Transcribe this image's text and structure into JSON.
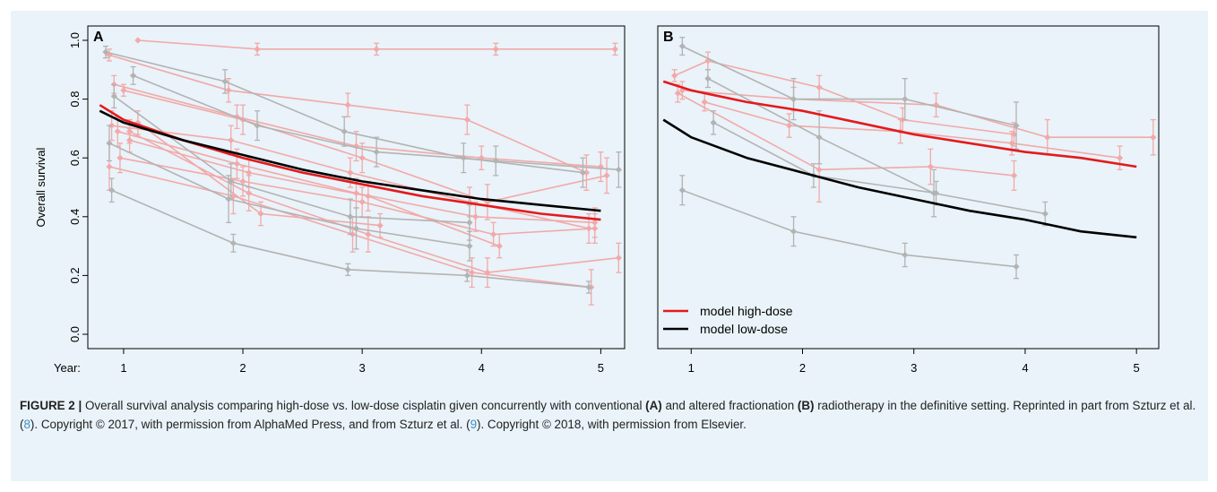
{
  "caption": {
    "figure_label": "FIGURE 2 |",
    "t1": " Overall survival analysis comparing high-dose vs. low-dose cisplatin given concurrently with conventional ",
    "b1": "(A)",
    "t2": " and altered fractionation ",
    "b2": "(B)",
    "t3": " radiotherapy in the definitive setting. Reprinted in part from Szturz et al. (",
    "ref1": "8",
    "t4": "). Copyright © 2017, with permission from AlphaMed Press, and from Szturz et al. (",
    "ref2": "9",
    "t5": "). Copyright © 2018, with permission from Elsevier."
  },
  "colors": {
    "high_dose_study": "#f2a9a9",
    "low_dose_study": "#b3b3b3",
    "model_high": "#e31a1c",
    "model_low": "#000000",
    "frame_bg": "#e9f3f9"
  },
  "chart_data": [
    {
      "panel": "A",
      "type": "line",
      "ylabel": "Overall survival",
      "x_axis_prefix": "Year:",
      "xticks": [
        1,
        2,
        3,
        4,
        5
      ],
      "yticks": [
        "0.0",
        "0.2",
        "0.4",
        "0.6",
        "0.8",
        "1.0"
      ],
      "xlim": [
        0.7,
        5.2
      ],
      "ylim": [
        0.0,
        1.0
      ],
      "models": [
        {
          "name": "model high-dose",
          "color": "#e31a1c",
          "x": [
            0.8,
            1.0,
            1.5,
            2.0,
            2.5,
            3.0,
            3.5,
            4.0,
            4.5,
            5.0
          ],
          "y": [
            0.78,
            0.73,
            0.66,
            0.6,
            0.55,
            0.51,
            0.47,
            0.44,
            0.41,
            0.39
          ]
        },
        {
          "name": "model low-dose",
          "color": "#000000",
          "x": [
            0.8,
            1.0,
            1.5,
            2.0,
            2.5,
            3.0,
            3.5,
            4.0,
            4.5,
            5.0
          ],
          "y": [
            0.76,
            0.72,
            0.66,
            0.61,
            0.56,
            0.52,
            0.49,
            0.46,
            0.44,
            0.42
          ]
        }
      ],
      "studies": [
        {
          "arm": "high",
          "x": [
            1.12,
            2.12,
            3.12,
            4.12,
            5.12
          ],
          "y": [
            1.0,
            0.97,
            0.97,
            0.97,
            0.97
          ],
          "err": [
            0,
            0.02,
            0.02,
            0.02,
            0.02
          ]
        },
        {
          "arm": "high",
          "x": [
            0.88,
            1.88,
            2.88,
            3.88,
            4.88
          ],
          "y": [
            0.95,
            0.83,
            0.78,
            0.73,
            0.55
          ],
          "err": [
            0.02,
            0.04,
            0.04,
            0.05,
            0.06
          ]
        },
        {
          "arm": "high",
          "x": [
            0.92,
            1.95,
            2.95,
            4.0,
            5.0
          ],
          "y": [
            0.85,
            0.74,
            0.64,
            0.6,
            0.57
          ],
          "err": [
            0.03,
            0.04,
            0.05,
            0.04,
            0.05
          ]
        },
        {
          "arm": "high",
          "x": [
            1.0,
            2.0,
            3.0,
            4.05,
            5.05
          ],
          "y": [
            0.83,
            0.73,
            0.6,
            0.45,
            0.54
          ],
          "err": [
            0.02,
            0.05,
            0.05,
            0.06,
            0.06
          ]
        },
        {
          "arm": "high",
          "x": [
            0.9,
            1.9,
            2.9,
            3.9,
            4.9
          ],
          "y": [
            0.71,
            0.66,
            0.55,
            0.45,
            0.36
          ],
          "err": [
            0.05,
            0.05,
            0.05,
            0.05,
            0.05
          ]
        },
        {
          "arm": "high",
          "x": [
            0.95,
            1.95,
            2.95,
            3.95,
            4.95
          ],
          "y": [
            0.69,
            0.58,
            0.48,
            0.4,
            0.38
          ],
          "err": [
            0.05,
            0.05,
            0.05,
            0.05,
            0.05
          ]
        },
        {
          "arm": "high",
          "x": [
            0.97,
            2.0,
            3.0,
            4.1,
            4.95
          ],
          "y": [
            0.6,
            0.52,
            0.45,
            0.34,
            0.36
          ],
          "err": [
            0.05,
            0.05,
            0.05,
            0.04,
            0.05
          ]
        },
        {
          "arm": "high",
          "x": [
            1.05,
            2.05,
            3.05,
            4.15
          ],
          "y": [
            0.66,
            0.55,
            0.47,
            0.3
          ],
          "err": [
            0.04,
            0.05,
            0.05,
            0.04
          ]
        },
        {
          "arm": "high",
          "x": [
            1.12,
            2.15,
            3.15
          ],
          "y": [
            0.72,
            0.41,
            0.37
          ],
          "err": [
            0.04,
            0.04,
            0.04
          ]
        },
        {
          "arm": "high",
          "x": [
            0.88,
            1.92,
            2.92,
            3.92,
            4.92
          ],
          "y": [
            0.57,
            0.47,
            0.34,
            0.21,
            0.16
          ],
          "err": [
            0.08,
            0.06,
            0.06,
            0.05,
            0.06
          ]
        },
        {
          "arm": "high",
          "x": [
            1.05,
            2.05,
            3.05,
            4.05,
            5.15
          ],
          "y": [
            0.69,
            0.48,
            0.34,
            0.21,
            0.26
          ],
          "err": [
            0.04,
            0.06,
            0.06,
            0.05,
            0.05
          ]
        },
        {
          "arm": "low",
          "x": [
            0.85,
            1.85,
            2.85,
            3.85,
            4.85
          ],
          "y": [
            0.96,
            0.86,
            0.69,
            0.6,
            0.55
          ],
          "err": [
            0.02,
            0.04,
            0.05,
            0.05,
            0.05
          ]
        },
        {
          "arm": "low",
          "x": [
            1.08,
            2.12,
            3.12,
            4.12,
            5.15
          ],
          "y": [
            0.88,
            0.71,
            0.62,
            0.59,
            0.56
          ],
          "err": [
            0.03,
            0.05,
            0.05,
            0.05,
            0.06
          ]
        },
        {
          "arm": "low",
          "x": [
            0.92,
            1.9,
            2.9,
            3.9
          ],
          "y": [
            0.81,
            0.52,
            0.4,
            0.38
          ],
          "err": [
            0.04,
            0.06,
            0.06,
            0.06
          ]
        },
        {
          "arm": "low",
          "x": [
            0.88,
            1.88,
            2.95,
            3.9
          ],
          "y": [
            0.65,
            0.46,
            0.36,
            0.3
          ],
          "err": [
            0.06,
            0.08,
            0.07,
            0.05
          ]
        },
        {
          "arm": "low",
          "x": [
            0.9,
            1.92,
            2.88,
            3.88,
            4.9
          ],
          "y": [
            0.49,
            0.31,
            0.22,
            0.2,
            0.16
          ],
          "err": [
            0.04,
            0.03,
            0.02,
            0.02,
            0.02
          ]
        }
      ]
    },
    {
      "panel": "B",
      "type": "line",
      "xticks": [
        1,
        2,
        3,
        4,
        5
      ],
      "xlim": [
        0.7,
        5.2
      ],
      "ylim": [
        0.0,
        1.0
      ],
      "legend": {
        "position": "bottom-left",
        "entries": [
          "model high-dose",
          "model low-dose"
        ]
      },
      "models": [
        {
          "name": "model high-dose",
          "color": "#e31a1c",
          "x": [
            0.75,
            1.0,
            1.5,
            2.0,
            2.5,
            3.0,
            3.5,
            4.0,
            4.5,
            5.0
          ],
          "y": [
            0.86,
            0.83,
            0.79,
            0.76,
            0.72,
            0.68,
            0.65,
            0.62,
            0.6,
            0.57
          ]
        },
        {
          "name": "model low-dose",
          "color": "#000000",
          "x": [
            0.75,
            1.0,
            1.5,
            2.0,
            2.5,
            3.0,
            3.5,
            4.0,
            4.5,
            5.0
          ],
          "y": [
            0.73,
            0.67,
            0.6,
            0.55,
            0.5,
            0.46,
            0.42,
            0.39,
            0.35,
            0.33
          ]
        }
      ],
      "studies": [
        {
          "arm": "high",
          "x": [
            0.85,
            1.15,
            2.15,
            2.9,
            3.9
          ],
          "y": [
            0.88,
            0.93,
            0.84,
            0.73,
            0.68
          ],
          "err": [
            0.02,
            0.03,
            0.04,
            0.04,
            0.04
          ]
        },
        {
          "arm": "high",
          "x": [
            0.92,
            1.92,
            3.2,
            4.2,
            5.15
          ],
          "y": [
            0.83,
            0.8,
            0.78,
            0.67,
            0.67
          ],
          "err": [
            0.03,
            0.04,
            0.04,
            0.06,
            0.06
          ]
        },
        {
          "arm": "high",
          "x": [
            1.12,
            1.88,
            2.88,
            3.88,
            4.85
          ],
          "y": [
            0.79,
            0.71,
            0.69,
            0.65,
            0.6
          ],
          "err": [
            0.03,
            0.04,
            0.04,
            0.04,
            0.04
          ]
        },
        {
          "arm": "high",
          "x": [
            0.88,
            2.15,
            3.15,
            3.9
          ],
          "y": [
            0.82,
            0.56,
            0.57,
            0.54
          ],
          "err": [
            0.03,
            0.11,
            0.06,
            0.05
          ]
        },
        {
          "arm": "low",
          "x": [
            0.92,
            1.92,
            2.92,
            3.92
          ],
          "y": [
            0.98,
            0.8,
            0.8,
            0.71
          ],
          "err": [
            0.03,
            0.07,
            0.07,
            0.08
          ]
        },
        {
          "arm": "low",
          "x": [
            1.15,
            2.15,
            3.18,
            4.18
          ],
          "y": [
            0.87,
            0.67,
            0.48,
            0.41
          ],
          "err": [
            0.03,
            0.09,
            0.08,
            0.04
          ]
        },
        {
          "arm": "low",
          "x": [
            1.2,
            2.1,
            3.2
          ],
          "y": [
            0.72,
            0.54,
            0.48
          ],
          "err": [
            0.04,
            0.04,
            0.04
          ]
        },
        {
          "arm": "low",
          "x": [
            0.92,
            1.92,
            2.92,
            3.92
          ],
          "y": [
            0.49,
            0.35,
            0.27,
            0.23
          ],
          "err": [
            0.05,
            0.05,
            0.04,
            0.04
          ]
        }
      ]
    }
  ]
}
